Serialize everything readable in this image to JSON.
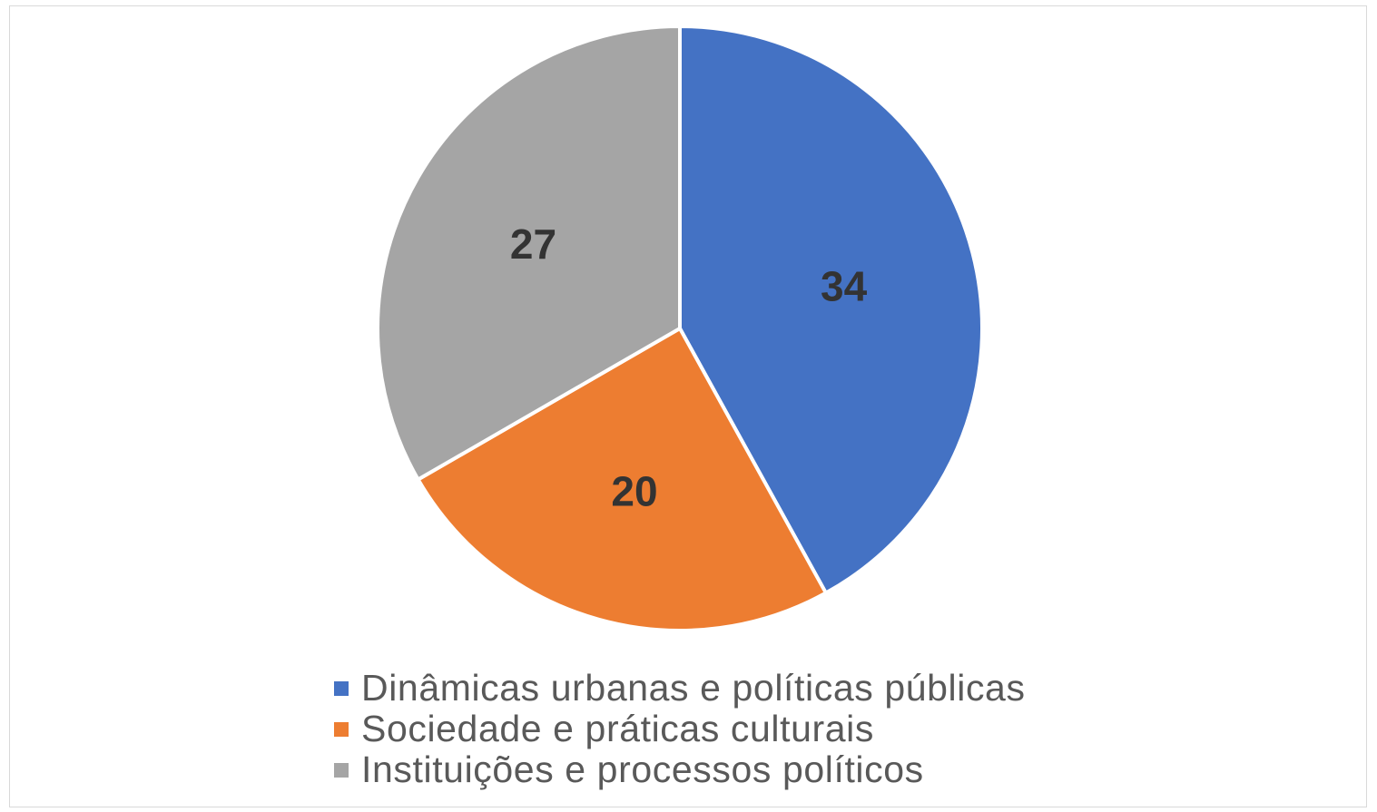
{
  "chart_data": {
    "type": "pie",
    "categories": [
      "Dinâmicas urbanas e políticas públicas",
      "Sociedade e práticas culturais",
      "Instituições e processos políticos"
    ],
    "values": [
      34,
      20,
      27
    ],
    "value_labels": [
      "34",
      "20",
      "27"
    ],
    "colors": [
      "#4472c4",
      "#ed7d31",
      "#a5a5a5"
    ],
    "start_angle": "12 o'clock",
    "direction": "clockwise",
    "legend_position": "bottom",
    "data_labels": "inside",
    "title": "",
    "xlabel": "",
    "ylabel": ""
  }
}
